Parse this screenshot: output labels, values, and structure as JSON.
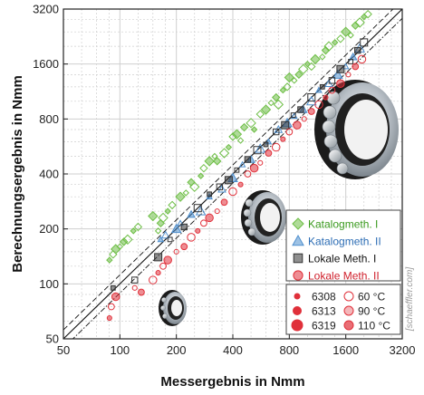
{
  "chart_data": {
    "type": "scatter",
    "xlabel": "Messergebnis in Nmm",
    "ylabel": "Berechnungsergebnis in Nmm",
    "scale": "log2",
    "xlim": [
      50,
      3200
    ],
    "ylim": [
      50,
      3200
    ],
    "x_ticks": [
      "50",
      "100",
      "200",
      "400",
      "800",
      "1600",
      "3200"
    ],
    "y_ticks": [
      "50",
      "100",
      "200",
      "400",
      "800",
      "1600",
      "3200"
    ],
    "grid": true,
    "legend_position": "right",
    "reference_lines": [
      "y = x",
      "y = 1.1 x",
      "y = 0.9 x"
    ],
    "series": [
      {
        "name": "Katalogmeth. I",
        "marker": "diamond",
        "color": "#6dbe45",
        "points": [
          [
            88,
            135
          ],
          [
            92,
            145
          ],
          [
            95,
            155
          ],
          [
            100,
            160
          ],
          [
            105,
            170
          ],
          [
            110,
            175
          ],
          [
            118,
            195
          ],
          [
            125,
            205
          ],
          [
            150,
            235
          ],
          [
            160,
            195
          ],
          [
            165,
            215
          ],
          [
            170,
            230
          ],
          [
            180,
            250
          ],
          [
            190,
            270
          ],
          [
            210,
            300
          ],
          [
            225,
            315
          ],
          [
            240,
            360
          ],
          [
            250,
            340
          ],
          [
            270,
            390
          ],
          [
            280,
            430
          ],
          [
            300,
            470
          ],
          [
            320,
            500
          ],
          [
            330,
            470
          ],
          [
            360,
            520
          ],
          [
            380,
            560
          ],
          [
            400,
            640
          ],
          [
            420,
            660
          ],
          [
            440,
            610
          ],
          [
            460,
            720
          ],
          [
            500,
            760
          ],
          [
            520,
            700
          ],
          [
            560,
            850
          ],
          [
            600,
            900
          ],
          [
            640,
            980
          ],
          [
            680,
            1050
          ],
          [
            700,
            960
          ],
          [
            740,
            1150
          ],
          [
            780,
            1200
          ],
          [
            800,
            1350
          ],
          [
            850,
            1300
          ],
          [
            900,
            1400
          ],
          [
            950,
            1500
          ],
          [
            1000,
            1600
          ],
          [
            1050,
            1550
          ],
          [
            1100,
            1700
          ],
          [
            1200,
            1750
          ],
          [
            1250,
            1900
          ],
          [
            1300,
            2000
          ],
          [
            1400,
            2100
          ],
          [
            1500,
            2200
          ],
          [
            1600,
            2400
          ],
          [
            1700,
            2300
          ],
          [
            1800,
            2600
          ],
          [
            1900,
            2700
          ],
          [
            2000,
            2900
          ],
          [
            2100,
            3000
          ]
        ]
      },
      {
        "name": "Katalogmeth. II",
        "marker": "triangle",
        "color": "#4f8fce",
        "points": [
          [
            165,
            175
          ],
          [
            175,
            185
          ],
          [
            200,
            200
          ],
          [
            210,
            215
          ],
          [
            240,
            240
          ],
          [
            270,
            250
          ],
          [
            300,
            300
          ],
          [
            350,
            330
          ],
          [
            400,
            380
          ],
          [
            450,
            450
          ],
          [
            500,
            480
          ],
          [
            560,
            550
          ],
          [
            620,
            600
          ],
          [
            700,
            700
          ],
          [
            780,
            760
          ],
          [
            850,
            830
          ],
          [
            950,
            900
          ],
          [
            1050,
            1000
          ],
          [
            1150,
            1150
          ],
          [
            1300,
            1250
          ],
          [
            1450,
            1400
          ],
          [
            1600,
            1550
          ],
          [
            1750,
            1750
          ],
          [
            1900,
            1950
          ]
        ]
      },
      {
        "name": "Lokale Meth. I",
        "marker": "square",
        "color": "#333333",
        "points": [
          [
            92,
            95
          ],
          [
            120,
            105
          ],
          [
            160,
            140
          ],
          [
            185,
            175
          ],
          [
            220,
            205
          ],
          [
            260,
            260
          ],
          [
            300,
            310
          ],
          [
            340,
            340
          ],
          [
            380,
            370
          ],
          [
            420,
            420
          ],
          [
            480,
            480
          ],
          [
            540,
            540
          ],
          [
            600,
            580
          ],
          [
            680,
            680
          ],
          [
            760,
            740
          ],
          [
            840,
            840
          ],
          [
            920,
            900
          ],
          [
            1050,
            1050
          ],
          [
            1200,
            1200
          ],
          [
            1350,
            1300
          ],
          [
            1500,
            1500
          ],
          [
            1700,
            1650
          ],
          [
            1850,
            1900
          ],
          [
            2000,
            2100
          ]
        ]
      },
      {
        "name": "Lokale Meth. II",
        "marker": "circle",
        "color": "#e0303a",
        "points": [
          [
            88,
            65
          ],
          [
            90,
            75
          ],
          [
            95,
            85
          ],
          [
            120,
            95
          ],
          [
            130,
            90
          ],
          [
            150,
            105
          ],
          [
            160,
            115
          ],
          [
            170,
            125
          ],
          [
            180,
            135
          ],
          [
            200,
            150
          ],
          [
            220,
            160
          ],
          [
            240,
            180
          ],
          [
            260,
            195
          ],
          [
            280,
            215
          ],
          [
            300,
            230
          ],
          [
            330,
            250
          ],
          [
            360,
            280
          ],
          [
            400,
            320
          ],
          [
            440,
            350
          ],
          [
            480,
            400
          ],
          [
            520,
            430
          ],
          [
            560,
            460
          ],
          [
            620,
            520
          ],
          [
            680,
            560
          ],
          [
            740,
            620
          ],
          [
            800,
            680
          ],
          [
            880,
            740
          ],
          [
            960,
            800
          ],
          [
            1050,
            880
          ],
          [
            1150,
            960
          ],
          [
            1250,
            1050
          ],
          [
            1350,
            1150
          ],
          [
            1500,
            1250
          ],
          [
            1650,
            1400
          ],
          [
            1800,
            1550
          ],
          [
            1950,
            1700
          ]
        ]
      }
    ]
  },
  "legend": {
    "items": [
      {
        "label": "Katalogmeth. I",
        "color": "#6dbe45",
        "text_color": "#3a9a1e",
        "marker": "diamond"
      },
      {
        "label": "Katalogmeth. II",
        "color": "#4f8fce",
        "text_color": "#2b6cb4",
        "marker": "triangle"
      },
      {
        "label": "Lokale Meth. I",
        "color": "#333333",
        "text_color": "#111111",
        "marker": "square"
      },
      {
        "label": "Lokale Meth. II",
        "color": "#e0303a",
        "text_color": "#d0202c",
        "marker": "circle"
      }
    ]
  },
  "size_legend": {
    "bearings": [
      "6308",
      "6313",
      "6319"
    ],
    "temperatures": [
      "60 °C",
      "90 °C",
      "110 °C"
    ]
  },
  "credit": "[schaeffler.com]",
  "colors": {
    "grid": "#cfcfcf",
    "frame": "#222222",
    "bearing_ring": "#9aa3ab",
    "bearing_seal": "#1a1a1a"
  },
  "icons": [
    "bearing-image-large",
    "bearing-image-medium",
    "bearing-image-small"
  ]
}
